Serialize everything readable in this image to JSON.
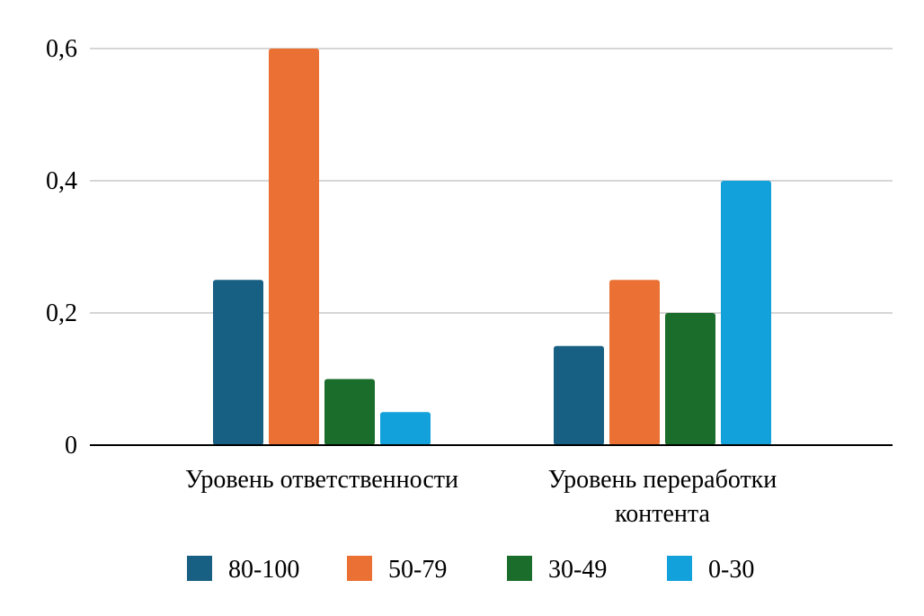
{
  "chart_data": {
    "type": "bar",
    "title": "",
    "xlabel": "",
    "ylabel": "",
    "ylim": [
      0,
      0.6
    ],
    "yticks": [
      {
        "value": 0,
        "label": "0"
      },
      {
        "value": 0.2,
        "label": "0,2"
      },
      {
        "value": 0.4,
        "label": "0,4"
      },
      {
        "value": 0.6,
        "label": "0,6"
      }
    ],
    "categories": [
      [
        "Уровень ответственности"
      ],
      [
        "Уровень переработки",
        "контента"
      ]
    ],
    "series": [
      {
        "name": "80-100",
        "color": "#175f83",
        "values": [
          0.25,
          0.15
        ]
      },
      {
        "name": "50-79",
        "color": "#ea7133",
        "values": [
          0.6,
          0.25
        ]
      },
      {
        "name": "30-49",
        "color": "#1b6d2c",
        "values": [
          0.1,
          0.2
        ]
      },
      {
        "name": "0-30",
        "color": "#12a1da",
        "values": [
          0.05,
          0.4
        ]
      }
    ],
    "grid": true,
    "legend": "bottom-center"
  }
}
